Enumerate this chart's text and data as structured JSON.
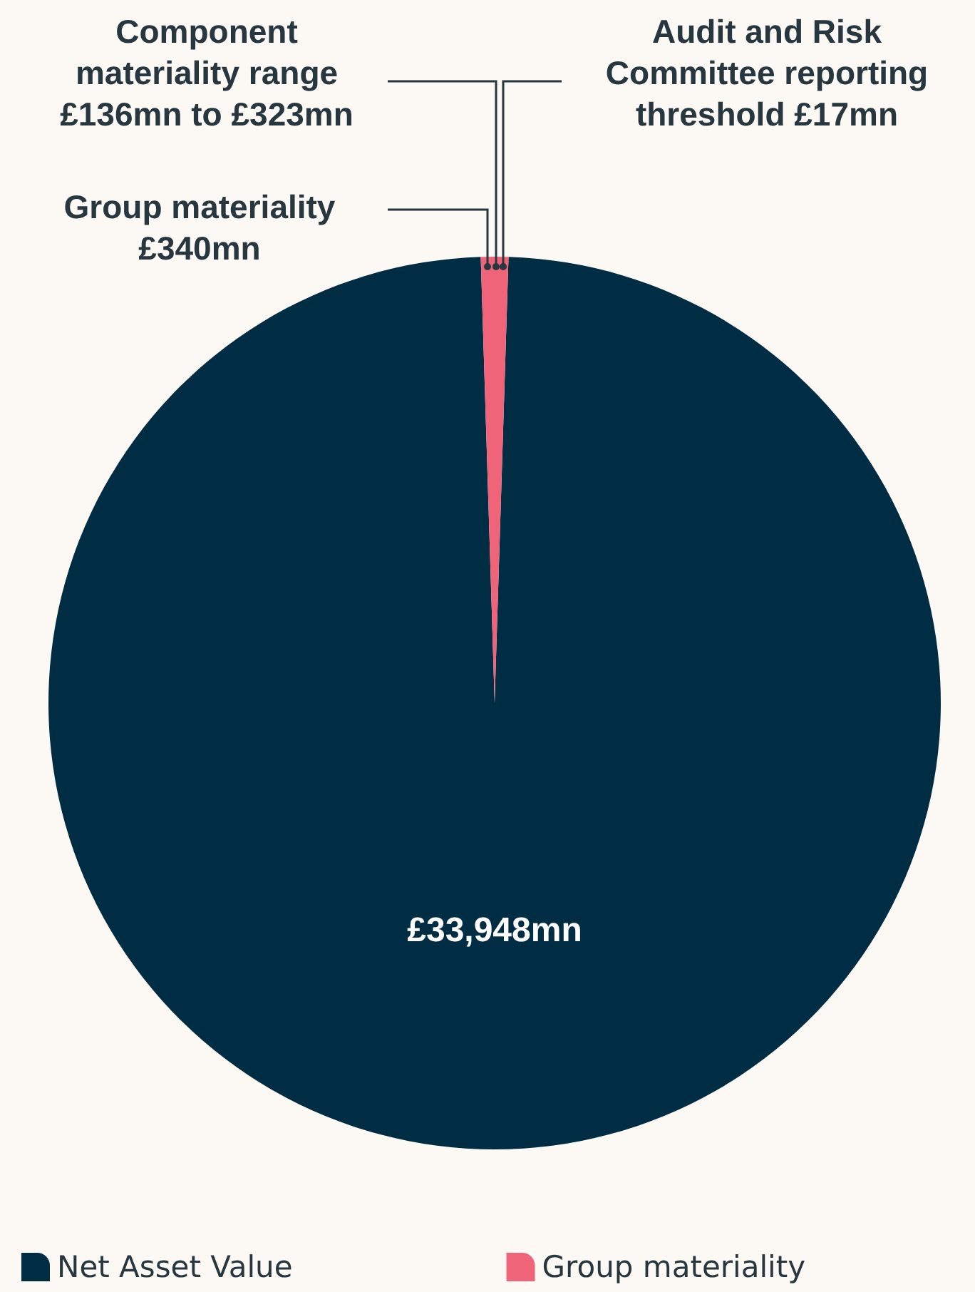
{
  "chart_data": {
    "type": "pie",
    "categories": [
      "Net Asset Value",
      "Group materiality"
    ],
    "values": [
      33948,
      340
    ],
    "colors": [
      "#012d44",
      "#f0647a"
    ],
    "value_labels": [
      "£33,948mn",
      null
    ],
    "annotations": [
      "Component\nmateriality range\n£136mn to £323mn",
      "Audit and Risk\nCommittee reporting\nthreshold £17mn",
      "Group materiality\n£340mn"
    ],
    "legend": "bottom"
  }
}
